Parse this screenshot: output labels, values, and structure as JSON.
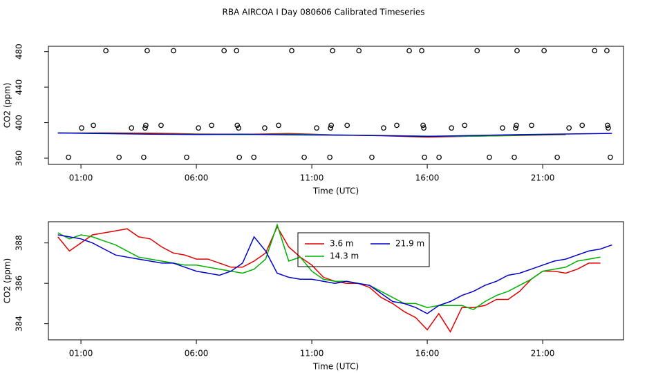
{
  "title": "RBA AIRCOA I  Day 080606  Calibrated Timeseries",
  "chart_data": [
    {
      "type": "line",
      "xlabel": "Time (UTC)",
      "ylabel": "CO2 (ppm)",
      "xlim": [
        -0.41,
        24.5
      ],
      "ylim": [
        353,
        486
      ],
      "xticks": [
        {
          "value": 1,
          "label": "01:00"
        },
        {
          "value": 6,
          "label": "06:00"
        },
        {
          "value": 11,
          "label": "11:00"
        },
        {
          "value": 16,
          "label": "16:00"
        },
        {
          "value": 21,
          "label": "21:00"
        }
      ],
      "yticks": [
        360,
        400,
        440,
        480
      ],
      "x": [
        0,
        2,
        4,
        6,
        8,
        10,
        12,
        14,
        16,
        18,
        20,
        22,
        24
      ],
      "series": [
        {
          "color": "#e00000",
          "values": [
            388.3,
            388.5,
            388.2,
            387.2,
            386.8,
            387.8,
            386.1,
            385.3,
            383.7,
            384.8,
            385.6,
            386.5,
            null
          ]
        },
        {
          "color": "#00b000",
          "values": [
            388.5,
            388.1,
            387.2,
            386.9,
            386.5,
            387.1,
            386.1,
            385.6,
            384.8,
            384.7,
            385.9,
            386.8,
            null
          ]
        },
        {
          "color": "#0000cc",
          "values": [
            388.4,
            387.7,
            387.1,
            386.6,
            387.0,
            386.3,
            386.0,
            385.5,
            384.5,
            385.6,
            386.5,
            387.2,
            387.9
          ]
        }
      ],
      "points": {
        "color": "#000000",
        "x": [
          2.08,
          3.87,
          5.01,
          7.2,
          7.74,
          10.13,
          11.9,
          13.04,
          15.22,
          15.76,
          18.16,
          19.89,
          21.06,
          23.25,
          23.78,
          1.54,
          3.81,
          4.47,
          6.66,
          7.77,
          9.56,
          11.84,
          12.53,
          14.68,
          15.82,
          17.62,
          19.86,
          20.52,
          22.71,
          23.81,
          1.03,
          3.19,
          3.78,
          6.09,
          7.83,
          8.96,
          11.21,
          11.81,
          14.11,
          15.85,
          17.05,
          19.26,
          19.83,
          22.14,
          23.84,
          0.46,
          2.65,
          3.72,
          5.58,
          7.86,
          8.49,
          10.67,
          11.78,
          13.6,
          15.88,
          16.51,
          18.69,
          19.77,
          21.63,
          23.93
        ],
        "values": [
          481,
          481,
          481,
          481,
          481,
          481,
          481,
          481,
          481,
          481,
          481,
          481,
          481,
          481,
          481,
          397,
          397,
          397,
          397,
          397,
          397,
          397,
          397,
          397,
          397,
          397,
          397,
          397,
          397,
          397,
          394,
          394,
          394,
          394,
          394,
          394,
          394,
          394,
          394,
          394,
          394,
          394,
          394,
          394,
          394,
          361,
          361,
          361,
          361,
          361,
          361,
          361,
          361,
          361,
          361,
          361,
          361,
          361,
          361,
          361
        ]
      }
    },
    {
      "type": "line",
      "xlabel": "Time (UTC)",
      "ylabel": "CO2 (ppm)",
      "xlim": [
        -0.41,
        24.5
      ],
      "ylim": [
        383.2,
        389.05
      ],
      "xticks": [
        {
          "value": 1,
          "label": "01:00"
        },
        {
          "value": 6,
          "label": "06:00"
        },
        {
          "value": 11,
          "label": "11:00"
        },
        {
          "value": 16,
          "label": "16:00"
        },
        {
          "value": 21,
          "label": "21:00"
        }
      ],
      "yticks": [
        384,
        386,
        388
      ],
      "legend": "top-center",
      "x": [
        0,
        0.5,
        1,
        1.5,
        2,
        2.5,
        3,
        3.5,
        4,
        4.5,
        5,
        5.5,
        6,
        6.5,
        7,
        7.5,
        8,
        8.5,
        9,
        9.5,
        10,
        10.5,
        11,
        11.5,
        12,
        12.5,
        13,
        13.5,
        14,
        14.5,
        15,
        15.5,
        16,
        16.5,
        17,
        17.5,
        18,
        18.5,
        19,
        19.5,
        20,
        20.5,
        21,
        21.5,
        22,
        22.5,
        23,
        23.5,
        24
      ],
      "series": [
        {
          "name": "3.6 m",
          "color": "#e00000",
          "values": [
            388.3,
            387.6,
            388.0,
            388.4,
            388.5,
            388.6,
            388.7,
            388.3,
            388.2,
            387.8,
            387.5,
            387.4,
            387.2,
            387.2,
            387.0,
            386.8,
            386.8,
            387.1,
            387.5,
            388.8,
            387.8,
            387.3,
            386.9,
            386.3,
            386.1,
            386.0,
            386.0,
            385.8,
            385.3,
            385.0,
            384.6,
            384.3,
            383.7,
            384.5,
            383.6,
            384.8,
            384.8,
            384.9,
            385.2,
            385.2,
            385.6,
            386.2,
            386.6,
            386.6,
            386.5,
            386.7,
            387.0,
            387.0,
            null
          ]
        },
        {
          "name": "14.3 m",
          "color": "#00b000",
          "values": [
            388.5,
            388.2,
            388.4,
            388.3,
            388.1,
            387.9,
            387.6,
            387.3,
            387.2,
            387.1,
            387.0,
            386.9,
            386.9,
            386.8,
            386.7,
            386.6,
            386.5,
            386.7,
            387.2,
            388.9,
            387.1,
            387.3,
            386.6,
            386.2,
            386.1,
            386.1,
            386.0,
            385.9,
            385.6,
            385.3,
            385.0,
            385.0,
            384.8,
            384.9,
            384.9,
            384.9,
            384.7,
            385.1,
            385.4,
            385.6,
            385.9,
            386.2,
            386.6,
            386.7,
            386.8,
            387.1,
            387.2,
            387.3,
            null
          ]
        },
        {
          "name": "21.9 m",
          "color": "#0000cc",
          "values": [
            388.4,
            388.3,
            388.2,
            388.0,
            387.7,
            387.4,
            387.3,
            387.2,
            387.1,
            387.0,
            387.0,
            386.8,
            386.6,
            386.5,
            386.4,
            386.6,
            387.0,
            388.3,
            387.6,
            386.5,
            386.3,
            386.2,
            386.2,
            386.1,
            386.0,
            386.1,
            386.0,
            385.9,
            385.5,
            385.1,
            385.0,
            384.8,
            384.5,
            384.9,
            385.1,
            385.4,
            385.6,
            385.9,
            386.1,
            386.4,
            386.5,
            386.7,
            386.9,
            387.1,
            387.2,
            387.4,
            387.6,
            387.7,
            387.9
          ]
        }
      ]
    }
  ]
}
